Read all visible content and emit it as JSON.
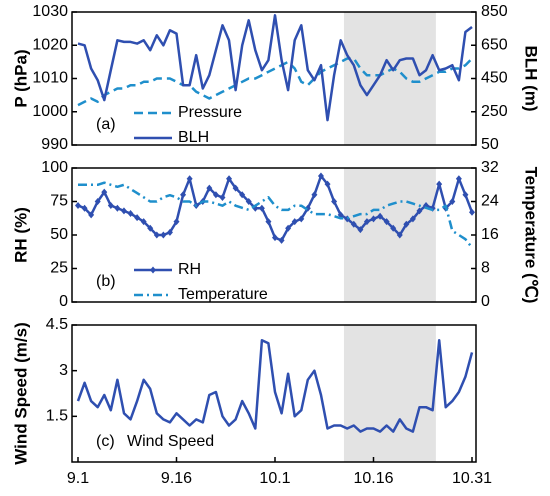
{
  "chart_data": [
    {
      "type": "line",
      "panel_label": "(a)",
      "ylabel": "P (hPa)",
      "y2label": "BLH (m)",
      "x": [
        0,
        1,
        2,
        3,
        4,
        5,
        6,
        7,
        8,
        9,
        10,
        11,
        12,
        13,
        14,
        15,
        16,
        17,
        18,
        19,
        20,
        21,
        22,
        23,
        24,
        25,
        26,
        27,
        28,
        29,
        30,
        31,
        32,
        33,
        34,
        35,
        36,
        37,
        38,
        39,
        40,
        41,
        42,
        43,
        44,
        45,
        46,
        47,
        48,
        49,
        50,
        51,
        52,
        53,
        54,
        55,
        56,
        57,
        58,
        59,
        60
      ],
      "xlim": [
        0,
        60
      ],
      "highlight_x": [
        40.5,
        54.5
      ],
      "ylim": [
        990,
        1030
      ],
      "yticks": [
        990,
        1000,
        1010,
        1020,
        1030
      ],
      "y2lim": [
        50,
        850
      ],
      "y2ticks": [
        50,
        250,
        450,
        650,
        850
      ],
      "legend": "lower left",
      "series": [
        {
          "name": "Pressure",
          "color": "#1f8fcc",
          "dash": "dash",
          "values": [
            1002,
            1003,
            1004,
            1003,
            1005,
            1006,
            1007,
            1007,
            1008,
            1008,
            1009,
            1009,
            1010,
            1010,
            1010,
            1009,
            1008,
            1008,
            1006,
            1005,
            1004,
            1005,
            1006,
            1007,
            1008,
            1009,
            1010,
            1010,
            1011,
            1012,
            1013,
            1014,
            1015,
            1013,
            1009,
            1008,
            1010,
            1012,
            1013,
            1014,
            1015,
            1016,
            1016,
            1013,
            1011,
            1011,
            1011,
            1012,
            1013,
            1012,
            1010,
            1009,
            1009,
            1010,
            1011,
            1012,
            1012,
            1013,
            1013,
            1014,
            1016
          ]
        },
        {
          "name": "BLH",
          "color": "#2f4fb0",
          "axis": "y2",
          "values": [
            660,
            650,
            510,
            440,
            320,
            500,
            680,
            670,
            670,
            660,
            680,
            620,
            710,
            650,
            740,
            720,
            410,
            410,
            590,
            390,
            470,
            620,
            770,
            680,
            380,
            650,
            800,
            620,
            500,
            560,
            830,
            560,
            380,
            680,
            770,
            500,
            440,
            530,
            200,
            470,
            680,
            590,
            530,
            410,
            350,
            410,
            470,
            560,
            500,
            560,
            570,
            570,
            470,
            500,
            590,
            500,
            510,
            530,
            440,
            730,
            760
          ]
        }
      ]
    },
    {
      "type": "line",
      "panel_label": "(b)",
      "ylabel": "RH (%)",
      "y2label": "Temperature (℃)",
      "x": [
        0,
        1,
        2,
        3,
        4,
        5,
        6,
        7,
        8,
        9,
        10,
        11,
        12,
        13,
        14,
        15,
        16,
        17,
        18,
        19,
        20,
        21,
        22,
        23,
        24,
        25,
        26,
        27,
        28,
        29,
        30,
        31,
        32,
        33,
        34,
        35,
        36,
        37,
        38,
        39,
        40,
        41,
        42,
        43,
        44,
        45,
        46,
        47,
        48,
        49,
        50,
        51,
        52,
        53,
        54,
        55,
        56,
        57,
        58,
        59,
        60
      ],
      "xlim": [
        0,
        60
      ],
      "highlight_x": [
        40.5,
        54.5
      ],
      "ylim": [
        0,
        100
      ],
      "yticks": [
        0,
        25,
        50,
        75,
        100
      ],
      "y2lim": [
        0,
        32
      ],
      "y2ticks": [
        0,
        8,
        16,
        24,
        32
      ],
      "legend": "lower left",
      "series": [
        {
          "name": "RH",
          "color": "#2f4fb0",
          "marker": "diamond",
          "values": [
            72,
            70,
            65,
            75,
            82,
            72,
            70,
            68,
            66,
            63,
            60,
            55,
            50,
            50,
            52,
            60,
            80,
            92,
            72,
            75,
            85,
            80,
            78,
            92,
            85,
            80,
            75,
            70,
            70,
            60,
            48,
            46,
            55,
            60,
            62,
            70,
            80,
            94,
            88,
            75,
            65,
            62,
            58,
            54,
            60,
            62,
            64,
            60,
            55,
            50,
            58,
            62,
            68,
            72,
            70,
            88,
            70,
            75,
            92,
            80,
            67
          ]
        },
        {
          "name": "Temperature",
          "color": "#1f8fcc",
          "dash": "dashdot",
          "axis": "y2",
          "values": [
            28,
            28,
            28,
            28,
            28.5,
            28,
            27.5,
            28,
            27,
            26,
            25,
            24,
            24,
            25,
            25.5,
            25,
            24,
            24,
            23,
            24,
            24,
            23.5,
            23,
            24,
            23,
            22.5,
            22,
            23,
            24,
            25,
            23,
            22,
            22,
            23,
            23,
            22,
            21,
            21,
            21,
            20.5,
            20,
            20,
            20.5,
            21,
            21,
            22,
            22,
            23,
            23.5,
            24,
            24,
            23.5,
            23,
            22.5,
            22,
            22,
            23,
            17,
            16,
            15,
            13
          ]
        }
      ]
    },
    {
      "type": "line",
      "panel_label": "(c)",
      "ylabel": "Wind Speed (m/s)",
      "x": [
        0,
        1,
        2,
        3,
        4,
        5,
        6,
        7,
        8,
        9,
        10,
        11,
        12,
        13,
        14,
        15,
        16,
        17,
        18,
        19,
        20,
        21,
        22,
        23,
        24,
        25,
        26,
        27,
        28,
        29,
        30,
        31,
        32,
        33,
        34,
        35,
        36,
        37,
        38,
        39,
        40,
        41,
        42,
        43,
        44,
        45,
        46,
        47,
        48,
        49,
        50,
        51,
        52,
        53,
        54,
        55,
        56,
        57,
        58,
        59,
        60
      ],
      "xlim": [
        0,
        60
      ],
      "highlight_x": [
        40.5,
        54.5
      ],
      "xticks": [
        {
          "value": 0,
          "label": "9.1"
        },
        {
          "value": 15,
          "label": "9.16"
        },
        {
          "value": 30,
          "label": "10.1"
        },
        {
          "value": 45,
          "label": "10.16"
        },
        {
          "value": 60,
          "label": "10.31"
        }
      ],
      "ylim": [
        0,
        4.5
      ],
      "yticks": [
        1.5,
        3,
        4.5
      ],
      "series": [
        {
          "name": "Wind Speed",
          "color": "#2f4fb0",
          "values": [
            2.0,
            2.6,
            2.0,
            1.8,
            2.2,
            1.7,
            2.7,
            1.6,
            1.4,
            2.0,
            2.7,
            2.4,
            1.6,
            1.4,
            1.3,
            1.6,
            1.4,
            1.2,
            1.4,
            1.3,
            2.2,
            2.3,
            1.5,
            1.2,
            1.4,
            2.0,
            1.6,
            1.1,
            4.0,
            3.9,
            2.3,
            1.6,
            2.9,
            1.5,
            1.7,
            2.7,
            3.0,
            2.2,
            1.1,
            1.2,
            1.2,
            1.1,
            1.2,
            1.0,
            1.1,
            1.1,
            1.0,
            1.2,
            1.0,
            1.4,
            1.1,
            1.0,
            1.8,
            1.8,
            1.7,
            4.0,
            1.8,
            2.0,
            2.3,
            2.8,
            3.6
          ]
        }
      ]
    }
  ]
}
